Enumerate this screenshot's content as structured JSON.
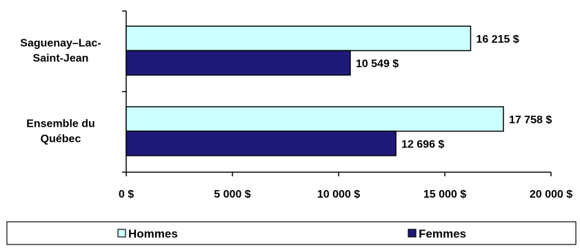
{
  "chart_data": {
    "type": "bar",
    "orientation": "horizontal",
    "categories": [
      [
        "Saguenay–Lac-",
        "Saint-Jean"
      ],
      [
        "Ensemble du",
        "Québec"
      ]
    ],
    "series": [
      {
        "name": "Hommes",
        "color": "#CCFFFF",
        "values": [
          16215,
          17758
        ],
        "labels": [
          "16 215 $",
          "17 758 $"
        ]
      },
      {
        "name": "Femmes",
        "color": "#1F1A7A",
        "values": [
          10549,
          12696
        ],
        "labels": [
          "10 549 $",
          "12 696 $"
        ]
      }
    ],
    "xlim": [
      0,
      20000
    ],
    "xticks": [
      0,
      5000,
      10000,
      15000,
      20000
    ],
    "xtick_labels": [
      "0 $",
      "5 000 $",
      "10 000 $",
      "15 000 $",
      "20 000 $"
    ],
    "grid": false,
    "legend_position": "bottom"
  }
}
